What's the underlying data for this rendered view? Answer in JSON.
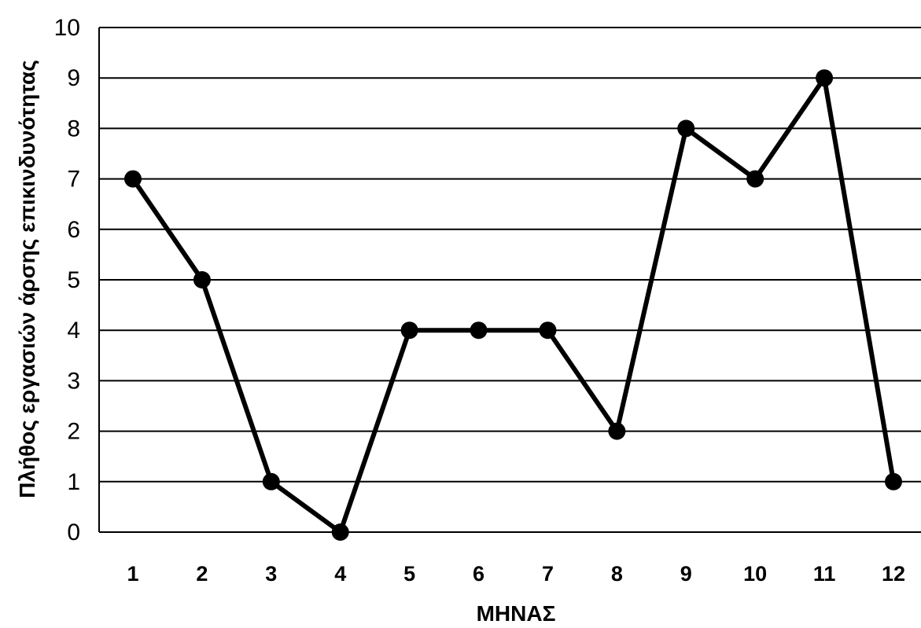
{
  "chart_data": {
    "type": "line",
    "xlabel": "ΜΗΝΑΣ",
    "ylabel": "Πλήθος εργασιών  άρσης επικινδυνότητας",
    "categories": [
      "1",
      "2",
      "3",
      "4",
      "5",
      "6",
      "7",
      "8",
      "9",
      "10",
      "11",
      "12"
    ],
    "series": [
      {
        "values": [
          7,
          5,
          1,
          0,
          4,
          4,
          4,
          2,
          8,
          7,
          9,
          1
        ]
      }
    ],
    "ylim": [
      0,
      10
    ],
    "yticks": [
      0,
      1,
      2,
      3,
      4,
      5,
      6,
      7,
      8,
      9,
      10
    ],
    "grid": "horizontal",
    "legend": "none",
    "line_color": "#000000",
    "marker_color": "#000000"
  }
}
